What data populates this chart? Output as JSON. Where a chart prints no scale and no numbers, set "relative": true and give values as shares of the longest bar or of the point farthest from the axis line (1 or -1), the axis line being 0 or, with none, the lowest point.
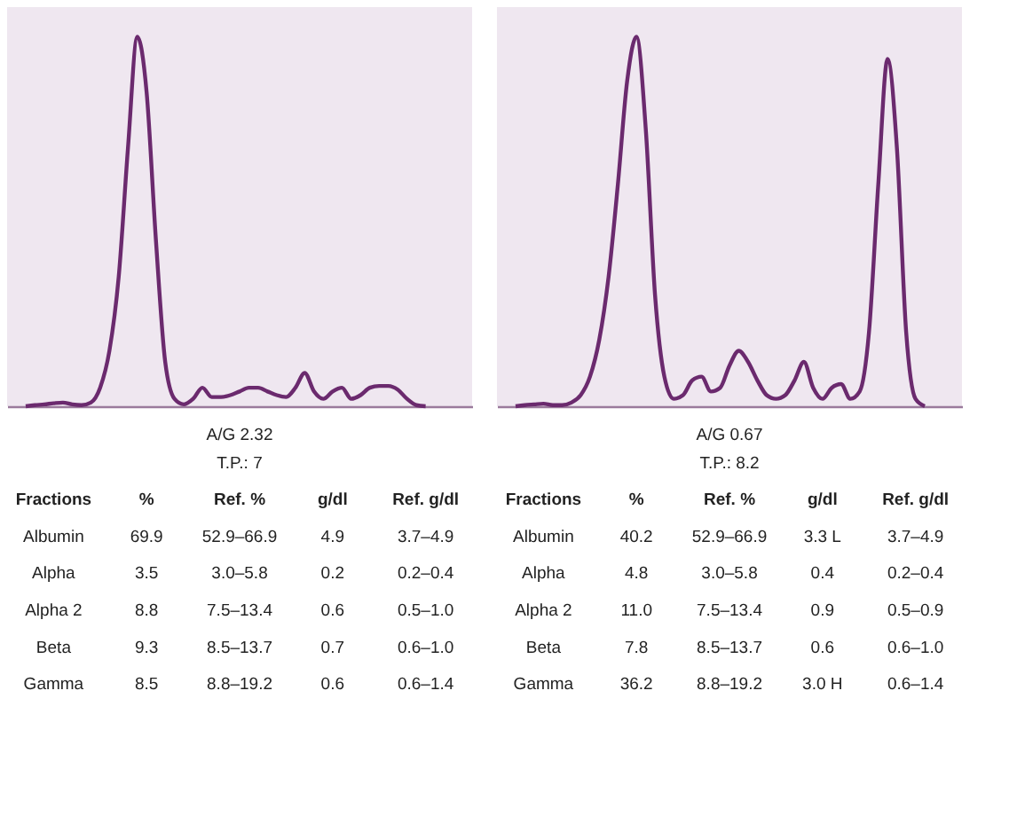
{
  "chart_data": [
    {
      "type": "line",
      "relative": true,
      "tick_labels": false,
      "grid": false,
      "marker": "none",
      "line_style": "solid",
      "categories": [
        null,
        null,
        null,
        null,
        null,
        null,
        null,
        null,
        null,
        null,
        null,
        null,
        null,
        null,
        null,
        null,
        null,
        null,
        null,
        null,
        null,
        null,
        null,
        null,
        null,
        null,
        null,
        null,
        null,
        null,
        null,
        null,
        null,
        null,
        null,
        null,
        null,
        null,
        null,
        null,
        null,
        null,
        null,
        null,
        null,
        null,
        null,
        null,
        null,
        null,
        null
      ],
      "series": [
        {
          "color": "#6b2a6e",
          "values": [
            null,
            null,
            0.0,
            0.003,
            0.005,
            0.008,
            0.01,
            0.005,
            0.003,
            0.01,
            0.05,
            0.15,
            0.35,
            0.7,
            1.0,
            0.85,
            0.45,
            0.12,
            0.02,
            0.005,
            0.02,
            0.05,
            0.025,
            0.025,
            0.03,
            0.04,
            0.05,
            0.05,
            0.04,
            0.03,
            0.025,
            0.05,
            0.09,
            0.04,
            0.02,
            0.04,
            0.05,
            0.02,
            0.03,
            0.05,
            0.055,
            0.055,
            0.045,
            0.02,
            0.003,
            0.0,
            null,
            null,
            null,
            null,
            null
          ]
        }
      ]
    },
    {
      "type": "line",
      "relative": true,
      "tick_labels": false,
      "grid": false,
      "marker": "none",
      "line_style": "solid",
      "categories": [
        null,
        null,
        null,
        null,
        null,
        null,
        null,
        null,
        null,
        null,
        null,
        null,
        null,
        null,
        null,
        null,
        null,
        null,
        null,
        null,
        null,
        null,
        null,
        null,
        null,
        null,
        null,
        null,
        null,
        null,
        null,
        null,
        null,
        null,
        null,
        null,
        null,
        null,
        null,
        null,
        null,
        null,
        null,
        null,
        null,
        null,
        null,
        null,
        null,
        null,
        null
      ],
      "series": [
        {
          "color": "#6b2a6e",
          "values": [
            null,
            null,
            0.0,
            0.003,
            0.005,
            0.007,
            0.003,
            0.003,
            0.01,
            0.03,
            0.08,
            0.18,
            0.35,
            0.6,
            0.88,
            1.0,
            0.75,
            0.3,
            0.08,
            0.02,
            0.03,
            0.07,
            0.08,
            0.04,
            0.05,
            0.11,
            0.15,
            0.12,
            0.07,
            0.03,
            0.02,
            0.03,
            0.07,
            0.12,
            0.05,
            0.02,
            0.05,
            0.06,
            0.02,
            0.04,
            0.2,
            0.6,
            0.94,
            0.7,
            0.2,
            0.02,
            0.0,
            null,
            null,
            null,
            null
          ]
        }
      ]
    },
    {
      "type": "other",
      "annotations": [
        "A/G  2.32",
        "T.P.: 7",
        "Fractions",
        "%",
        "Ref. %",
        "g/dl",
        "Ref. g/dl",
        "Albumin",
        "69.9",
        "52.9–66.9",
        "4.9",
        "3.7–4.9",
        "Alpha",
        "3.5",
        "3.0–5.8",
        "0.2",
        "0.2–0.4",
        "Alpha 2",
        "8.8",
        "7.5–13.4",
        "0.6",
        "0.5–1.0",
        "Beta",
        "9.3",
        "8.5–13.7",
        "0.7",
        "0.6–1.0",
        "Gamma",
        "8.5",
        "8.8–19.2",
        "0.6",
        "0.6–1.4"
      ]
    },
    {
      "type": "other",
      "annotations": [
        "A/G  0.67",
        "T.P.: 8.2",
        "Fractions",
        "%",
        "Ref. %",
        "g/dl",
        "Ref. g/dl",
        "Albumin",
        "40.2",
        "52.9–66.9",
        "3.3 L",
        "3.7–4.9",
        "Alpha",
        "4.8",
        "3.0–5.8",
        "0.4",
        "0.2–0.4",
        "Alpha 2",
        "11.0",
        "7.5–13.4",
        "0.9",
        "0.5–0.9",
        "Beta",
        "7.8",
        "8.5–13.7",
        "0.6",
        "0.6–1.0",
        "Gamma",
        "36.2",
        "8.8–19.2",
        "3.0 H",
        "0.6–1.4"
      ]
    }
  ]
}
